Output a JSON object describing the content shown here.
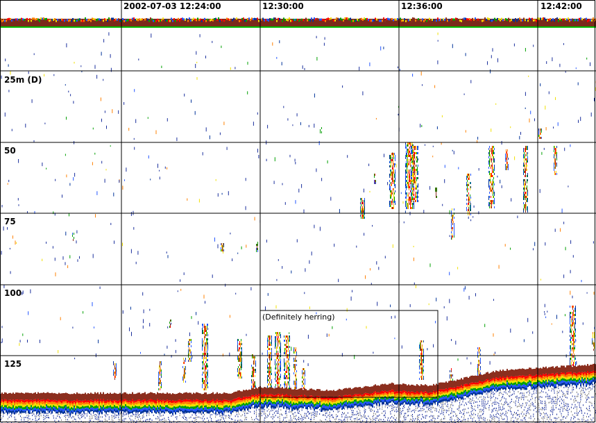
{
  "time_axis": {
    "labels": [
      "2002-07-03 12:24:00",
      "12:30:00",
      "12:36:00",
      "12:42:00"
    ]
  },
  "depth_axis": {
    "labels": [
      "25m (D)",
      "50",
      "75",
      "100",
      "125"
    ]
  },
  "annotation": {
    "label": "(Definitely herring)"
  },
  "colors": {
    "background": "#ffffff",
    "grid": "#000000",
    "surface_line": "#00c000",
    "seabed": "#8b2e1e",
    "echo_scale": [
      "#003399",
      "#2255ff",
      "#00a000",
      "#f0e000",
      "#ff8000",
      "#ff0000",
      "#8b2e1e"
    ]
  }
}
